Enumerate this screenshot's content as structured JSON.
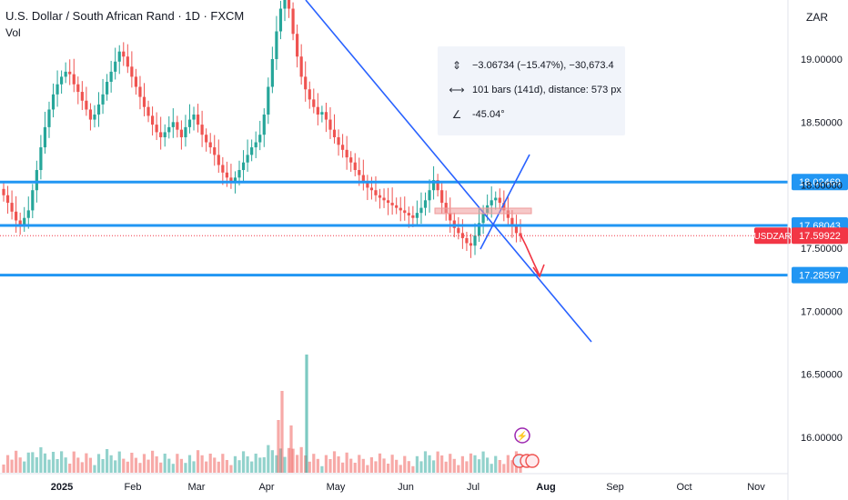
{
  "header": {
    "title": "U.S. Dollar / South African Rand · 1D · FXCM",
    "volume_label": "Vol",
    "currency": "ZAR"
  },
  "measure": {
    "price_change": "−3.06734 (−15.47%), −30,673.4",
    "bars": "101 bars (141d), distance: 573 px",
    "angle": "-45.04°",
    "icons": [
      "price-range-icon",
      "bars-range-icon",
      "angle-icon"
    ]
  },
  "colors": {
    "up": "#26a69a",
    "down": "#ef5350",
    "level_line": "#2196f3",
    "trend_line": "#2962ff",
    "current_price": "#f23645",
    "box": "#ef9a9a"
  },
  "chart_data": {
    "type": "candlestick",
    "symbol": "USDZAR",
    "timeframe": "1D",
    "y_axis": {
      "side": "right",
      "ticks": [
        19.0,
        18.5,
        18.0,
        17.5,
        17.0,
        16.5,
        16.0
      ],
      "tick_labels": [
        "19.00000",
        "18.50000",
        "18.00000",
        "17.50000",
        "17.00000",
        "16.50000",
        "16.00000"
      ],
      "ylim": [
        15.75,
        19.62
      ]
    },
    "x_axis": {
      "tick_labels": [
        "2025",
        "Feb",
        "Mar",
        "Apr",
        "May",
        "Jun",
        "Jul",
        "Aug",
        "Sep",
        "Oct",
        "Nov"
      ],
      "bold_labels": [
        "2025",
        "Aug"
      ]
    },
    "grid": false,
    "price_levels": [
      {
        "value": 18.02469,
        "label": "18.02469"
      },
      {
        "value": 17.68043,
        "label": "17.68043"
      },
      {
        "value": 17.28597,
        "label": "17.28597"
      }
    ],
    "current_price": {
      "value": 17.59922,
      "label": "17.59922",
      "tag": "USDZAR"
    },
    "candles_close": [
      17.92,
      17.86,
      17.79,
      17.72,
      17.68,
      17.74,
      17.8,
      17.96,
      18.12,
      18.3,
      18.46,
      18.6,
      18.72,
      18.8,
      18.86,
      18.9,
      18.88,
      18.8,
      18.74,
      18.67,
      18.6,
      18.52,
      18.56,
      18.64,
      18.72,
      18.82,
      18.9,
      18.98,
      19.06,
      19.02,
      18.94,
      18.86,
      18.78,
      18.7,
      18.62,
      18.55,
      18.48,
      18.42,
      18.38,
      18.42,
      18.46,
      18.5,
      18.44,
      18.38,
      18.46,
      18.52,
      18.56,
      18.48,
      18.4,
      18.34,
      18.3,
      18.24,
      18.16,
      18.1,
      18.06,
      18.02,
      18.06,
      18.12,
      18.18,
      18.24,
      18.3,
      18.34,
      18.4,
      18.56,
      18.78,
      19.0,
      19.22,
      19.4,
      19.52,
      19.4,
      19.2,
      19.02,
      18.86,
      18.76,
      18.68,
      18.62,
      18.56,
      18.58,
      18.52,
      18.44,
      18.38,
      18.32,
      18.28,
      18.22,
      18.18,
      18.12,
      18.08,
      18.02,
      17.98,
      17.96,
      17.92,
      17.9,
      17.88,
      17.86,
      17.84,
      17.82,
      17.8,
      17.78,
      17.76,
      17.74,
      17.78,
      17.82,
      17.88,
      17.96,
      18.04,
      17.96,
      17.86,
      17.78,
      17.72,
      17.66,
      17.62,
      17.58,
      17.54,
      17.52,
      17.6,
      17.7,
      17.78,
      17.84,
      17.88,
      17.9,
      17.86,
      17.8,
      17.74,
      17.68,
      17.62,
      17.59922
    ],
    "volume_ylim": [
      0,
      1
    ]
  }
}
